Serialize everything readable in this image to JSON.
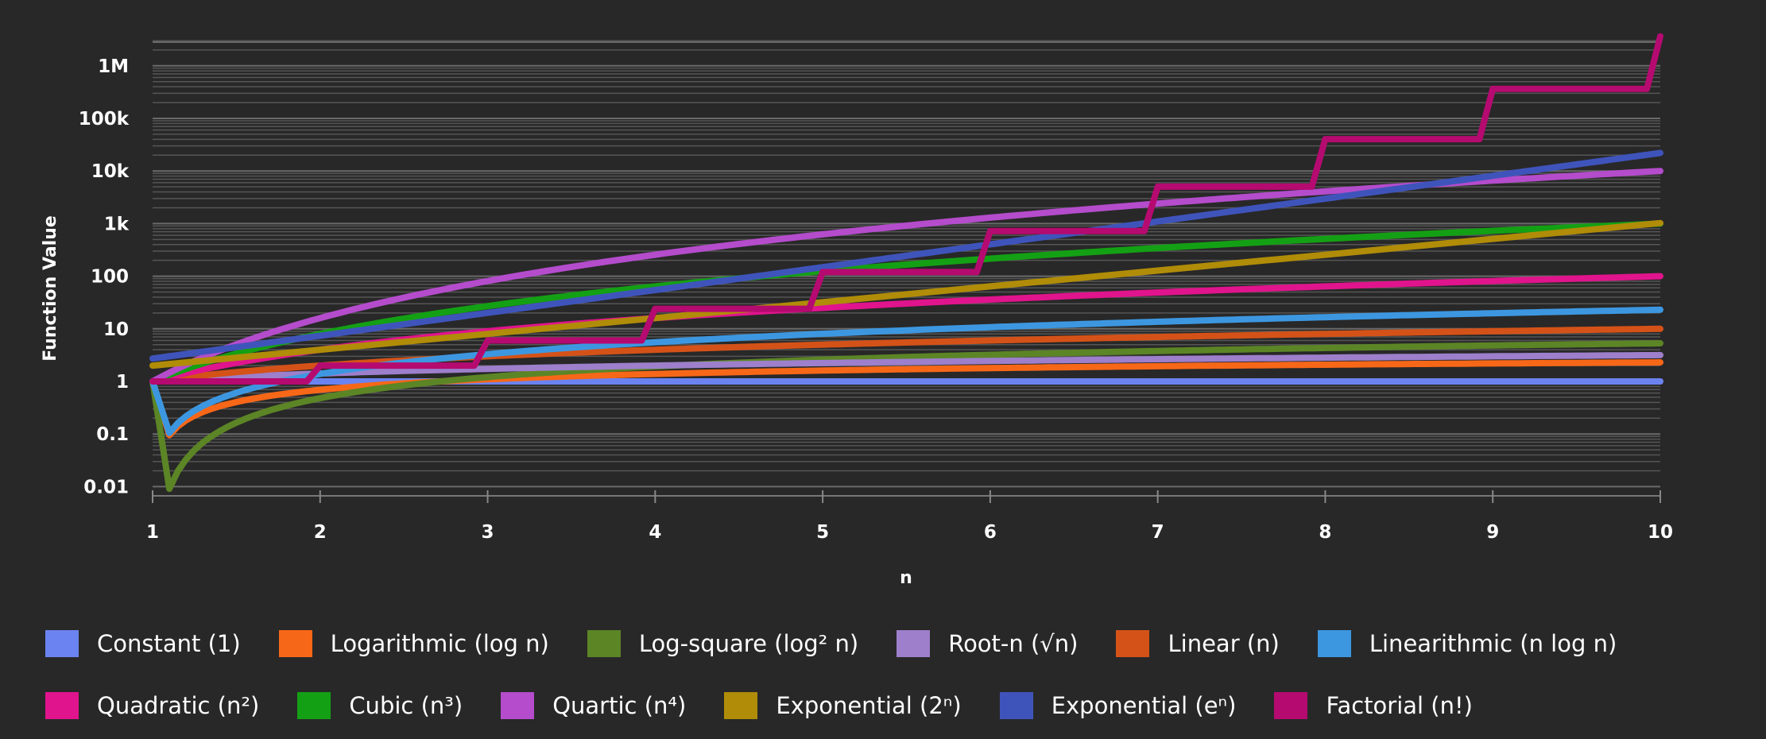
{
  "chart_data": {
    "type": "line",
    "title": "",
    "xlabel": "n",
    "ylabel": "Function Value",
    "yscale": "log",
    "xlim": [
      1,
      10
    ],
    "ylim": [
      0.007,
      3628800
    ],
    "x_ticks": [
      "1",
      "2",
      "3",
      "4",
      "5",
      "6",
      "7",
      "8",
      "9",
      "10"
    ],
    "y_ticks": [
      {
        "value": 0.01,
        "label": "0.01"
      },
      {
        "value": 0.1,
        "label": "0.1"
      },
      {
        "value": 1,
        "label": "1"
      },
      {
        "value": 10,
        "label": "10"
      },
      {
        "value": 100,
        "label": "100"
      },
      {
        "value": 1000,
        "label": "1k"
      },
      {
        "value": 10000,
        "label": "10k"
      },
      {
        "value": 100000,
        "label": "100k"
      },
      {
        "value": 1000000,
        "label": "1M"
      }
    ],
    "grid": true,
    "legend_position": "bottom",
    "x": [
      1,
      1.1,
      1.2,
      1.5,
      2,
      3,
      4,
      5,
      6,
      7,
      8,
      9,
      10
    ],
    "series": [
      {
        "name": "Constant (1)",
        "color": "#6b83f0",
        "values": [
          1,
          1,
          1,
          1,
          1,
          1,
          1,
          1,
          1,
          1,
          1,
          1,
          1
        ]
      },
      {
        "name": "Logarithmic (log n)",
        "color": "#f76718",
        "values": [
          1,
          0.095,
          0.18,
          0.41,
          0.69,
          1.1,
          1.39,
          1.61,
          1.79,
          1.95,
          2.08,
          2.2,
          2.3
        ]
      },
      {
        "name": "Log-square (log² n)",
        "color": "#5c8526",
        "values": [
          1,
          0.009,
          0.033,
          0.16,
          0.48,
          1.21,
          1.92,
          2.59,
          3.21,
          3.79,
          4.32,
          4.83,
          5.3
        ]
      },
      {
        "name": "Root-n (√n)",
        "color": "#9d7fcb",
        "values": [
          1,
          1.05,
          1.1,
          1.22,
          1.41,
          1.73,
          2,
          2.24,
          2.45,
          2.65,
          2.83,
          3,
          3.16
        ]
      },
      {
        "name": "Linear (n)",
        "color": "#d45218",
        "values": [
          1,
          1.1,
          1.2,
          1.5,
          2,
          3,
          4,
          5,
          6,
          7,
          8,
          9,
          10
        ]
      },
      {
        "name": "Linearithmic (n log n)",
        "color": "#3d97e0",
        "values": [
          1,
          0.105,
          0.22,
          0.61,
          1.39,
          3.3,
          5.55,
          8.05,
          10.75,
          13.6,
          16.6,
          19.8,
          23
        ]
      },
      {
        "name": "Quadratic (n²)",
        "color": "#e0148c",
        "values": [
          1,
          1.21,
          1.44,
          2.25,
          4,
          9,
          16,
          25,
          36,
          49,
          64,
          81,
          100
        ]
      },
      {
        "name": "Cubic (n³)",
        "color": "#14a014",
        "values": [
          1,
          1.33,
          1.73,
          3.38,
          8,
          27,
          64,
          125,
          216,
          343,
          512,
          729,
          1000
        ]
      },
      {
        "name": "Quartic (n⁴)",
        "color": "#b44ccc",
        "values": [
          1,
          1.46,
          2.07,
          5.06,
          16,
          81,
          256,
          625,
          1296,
          2401,
          4096,
          6561,
          10000
        ]
      },
      {
        "name": "Exponential (2ⁿ)",
        "color": "#b08c08",
        "values": [
          2,
          2.14,
          2.3,
          2.83,
          4,
          8,
          16,
          32,
          64,
          128,
          256,
          512,
          1024
        ]
      },
      {
        "name": "Exponential (eⁿ)",
        "color": "#3f54bb",
        "values": [
          2.72,
          3,
          3.32,
          4.48,
          7.39,
          20.1,
          54.6,
          148,
          403,
          1097,
          2981,
          8103,
          22026
        ]
      },
      {
        "name": "Factorial (n!)",
        "color": "#b50a70",
        "values": [
          1,
          1,
          1,
          1,
          2,
          6,
          24,
          120,
          720,
          5040,
          40320,
          362880,
          3628800
        ]
      }
    ]
  }
}
